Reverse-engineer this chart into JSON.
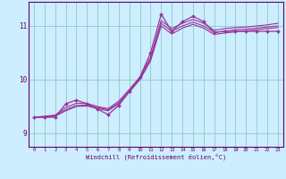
{
  "xlabel": "Windchill (Refroidissement éolien,°C)",
  "bg_color": "#cceeff",
  "line_color": "#993399",
  "grid_color": "#99cccc",
  "axis_color": "#660066",
  "text_color": "#660066",
  "xlim": [
    -0.5,
    23.5
  ],
  "ylim": [
    8.75,
    11.45
  ],
  "xticks": [
    0,
    1,
    2,
    3,
    4,
    5,
    6,
    7,
    8,
    9,
    10,
    11,
    12,
    13,
    14,
    15,
    16,
    17,
    18,
    19,
    20,
    21,
    22,
    23
  ],
  "yticks": [
    9,
    10,
    11
  ],
  "series_main": [
    9.3,
    9.3,
    9.3,
    9.55,
    9.62,
    9.55,
    9.45,
    9.35,
    9.52,
    9.78,
    10.05,
    10.5,
    11.22,
    10.9,
    11.08,
    11.18,
    11.08,
    10.88,
    10.9,
    10.9,
    10.9,
    10.9,
    10.9,
    10.9
  ],
  "series_smooth1": [
    9.3,
    9.32,
    9.34,
    9.48,
    9.56,
    9.56,
    9.5,
    9.46,
    9.6,
    9.82,
    10.05,
    10.42,
    11.1,
    10.95,
    11.05,
    11.12,
    11.05,
    10.92,
    10.95,
    10.97,
    10.98,
    11.0,
    11.02,
    11.05
  ],
  "series_smooth2": [
    9.3,
    9.31,
    9.33,
    9.44,
    9.52,
    9.53,
    9.48,
    9.44,
    9.57,
    9.79,
    10.02,
    10.38,
    11.05,
    10.9,
    11.0,
    11.07,
    11.0,
    10.88,
    10.9,
    10.93,
    10.94,
    10.96,
    10.98,
    11.0
  ],
  "series_smooth3": [
    9.3,
    9.3,
    9.32,
    9.42,
    9.5,
    9.51,
    9.46,
    9.42,
    9.55,
    9.77,
    10.0,
    10.35,
    11.0,
    10.85,
    10.96,
    11.03,
    10.96,
    10.84,
    10.87,
    10.89,
    10.91,
    10.93,
    10.95,
    10.97
  ]
}
